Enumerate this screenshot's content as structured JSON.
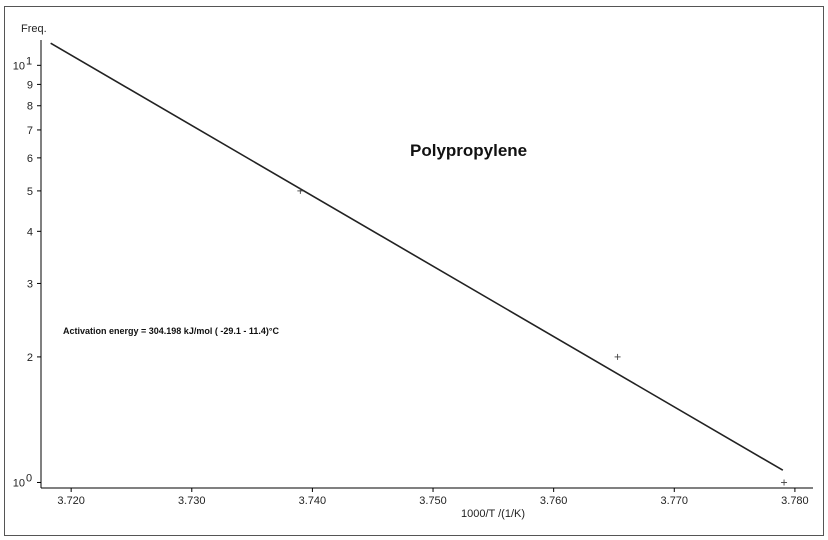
{
  "chart_data": {
    "type": "line",
    "title": "Polypropylene",
    "xlabel": "1000/T /(1/K)",
    "ylabel": "Freq.",
    "xlim": [
      3.7175,
      3.7815
    ],
    "ylim": [
      0.97,
      11.5
    ],
    "yscale": "log",
    "grid": false,
    "x_ticks": [
      "3.720",
      "3.730",
      "3.740",
      "3.750",
      "3.760",
      "3.770",
      "3.780"
    ],
    "y_ticks": [
      {
        "value": 1,
        "base": "10",
        "exp": "0"
      },
      {
        "value": 2,
        "label": "2"
      },
      {
        "value": 3,
        "label": "3"
      },
      {
        "value": 4,
        "label": "4"
      },
      {
        "value": 5,
        "label": "5"
      },
      {
        "value": 6,
        "label": "6"
      },
      {
        "value": 7,
        "label": "7"
      },
      {
        "value": 8,
        "label": "8"
      },
      {
        "value": 9,
        "label": "9"
      },
      {
        "value": 10,
        "base": "10",
        "exp": "1"
      }
    ],
    "series": [
      {
        "type": "line",
        "x": [
          3.7183,
          3.779
        ],
        "y": [
          11.3,
          1.07
        ]
      },
      {
        "type": "scatter",
        "marker": "+",
        "x": [
          3.739,
          3.7653,
          3.7791
        ],
        "y": [
          5.0,
          2.0,
          1.0
        ]
      }
    ],
    "annotation": "Activation energy = 304.198 kJ/mol  (    -29.1 - 11.4)°C"
  }
}
